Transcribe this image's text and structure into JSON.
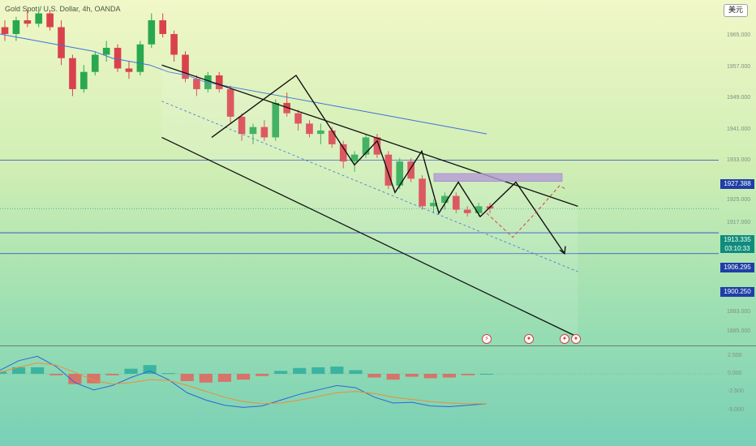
{
  "header": {
    "title": "Gold Spot / U.S. Dollar, 4h, OANDA",
    "currency_button": "美元"
  },
  "price_axis": {
    "ticks": [
      "1965.000",
      "1957.000",
      "1949.000",
      "1941.000",
      "1933.000",
      "1925.000",
      "1917.000",
      "1900.250",
      "1893.000",
      "1885.000"
    ],
    "tick_values": [
      1965,
      1957,
      1949,
      1941,
      1933,
      1925,
      1917,
      1900.25,
      1893,
      1885
    ]
  },
  "levels": [
    {
      "label": "1927.388",
      "value": 1927.388,
      "color": "#2747c4"
    },
    {
      "label": "1906.295",
      "value": 1906.295,
      "color": "#2747c4"
    },
    {
      "label": "1900.250",
      "value": 1900.25,
      "color": "#2747c4"
    }
  ],
  "current_price": {
    "price": "1913.335",
    "countdown": "03:10:33",
    "value": 1913.335,
    "color": "#0f8c7c"
  },
  "events": [
    {
      "icon": "lightning-icon",
      "glyph": "⚡"
    },
    {
      "icon": "us-flag-icon",
      "glyph": "✦"
    },
    {
      "icon": "us-flag-icon",
      "glyph": "✦"
    },
    {
      "icon": "us-flag-icon",
      "glyph": "✦"
    }
  ],
  "macd_axis": {
    "ticks": [
      "2.500",
      "0.000",
      "-2.500",
      "-5.000"
    ],
    "tick_values": [
      2.5,
      0,
      -2.5,
      -5
    ]
  },
  "colors": {
    "up": "#2aa84f",
    "down": "#d9424c",
    "ma": "#3f73d9",
    "channel": "#111111",
    "zone": "#b59ad8",
    "macd": "#2f64d9",
    "signal": "#f08d34",
    "hist_up": "#1fa89a",
    "hist_down": "#ef5350"
  },
  "chart_data": {
    "type": "candlestick",
    "symbol": "Gold Spot / U.S. Dollar",
    "timeframe": "4h",
    "ylim": [
      1875,
      1972
    ],
    "candles": [
      [
        1966,
        1968,
        1962,
        1964
      ],
      [
        1964,
        1969,
        1962,
        1968
      ],
      [
        1968,
        1971,
        1966,
        1967
      ],
      [
        1967,
        1972,
        1966,
        1970
      ],
      [
        1970,
        1971,
        1965,
        1966
      ],
      [
        1966,
        1968,
        1955,
        1957
      ],
      [
        1957,
        1958,
        1946,
        1948
      ],
      [
        1948,
        1955,
        1947,
        1953
      ],
      [
        1953,
        1959,
        1952,
        1958
      ],
      [
        1958,
        1962,
        1956,
        1960
      ],
      [
        1960,
        1961,
        1953,
        1954
      ],
      [
        1954,
        1956,
        1951,
        1953
      ],
      [
        1953,
        1962,
        1952,
        1961
      ],
      [
        1961,
        1970,
        1960,
        1968
      ],
      [
        1968,
        1970,
        1963,
        1964
      ],
      [
        1964,
        1965,
        1956,
        1958
      ],
      [
        1958,
        1959,
        1950,
        1951
      ],
      [
        1951,
        1952,
        1946,
        1948
      ],
      [
        1948,
        1953,
        1947,
        1952
      ],
      [
        1952,
        1953,
        1947,
        1948
      ],
      [
        1948,
        1949,
        1938,
        1940
      ],
      [
        1940,
        1941,
        1933,
        1935
      ],
      [
        1935,
        1938,
        1932,
        1937
      ],
      [
        1937,
        1939,
        1933,
        1934
      ],
      [
        1934,
        1945,
        1933,
        1944
      ],
      [
        1944,
        1947,
        1940,
        1941
      ],
      [
        1941,
        1942,
        1936,
        1938
      ],
      [
        1938,
        1939,
        1934,
        1935
      ],
      [
        1935,
        1938,
        1932,
        1936
      ],
      [
        1936,
        1937,
        1931,
        1932
      ],
      [
        1932,
        1933,
        1925,
        1927
      ],
      [
        1927,
        1930,
        1924,
        1929
      ],
      [
        1929,
        1935,
        1928,
        1934
      ],
      [
        1934,
        1935,
        1928,
        1929
      ],
      [
        1929,
        1930,
        1919,
        1920
      ],
      [
        1920,
        1928,
        1919,
        1927
      ],
      [
        1927,
        1928,
        1921,
        1922
      ],
      [
        1922,
        1923,
        1913,
        1914
      ],
      [
        1914,
        1916,
        1912,
        1915
      ],
      [
        1915,
        1918,
        1913,
        1917
      ],
      [
        1917,
        1918,
        1912,
        1913
      ],
      [
        1913,
        1914,
        1911,
        1912
      ],
      [
        1912,
        1915,
        1911,
        1914
      ],
      [
        1914,
        1915,
        1912,
        1913.335
      ]
    ],
    "moving_average": [
      1964,
      1963,
      1962,
      1961,
      1960,
      1959,
      1957,
      1956,
      1955,
      1953,
      1952,
      1950,
      1949,
      1948,
      1947,
      1946,
      1945,
      1944,
      1943,
      1942,
      1941,
      1940,
      1939,
      1938,
      1937,
      1936,
      1935
    ],
    "channel": {
      "upper": [
        [
          0.28,
          1955
        ],
        [
          1.0,
          1914
        ]
      ],
      "lower": [
        [
          0.28,
          1934
        ],
        [
          1.0,
          1876
        ]
      ]
    },
    "projection": [
      [
        0,
        1910
      ],
      [
        0.3,
        1919
      ],
      [
        0.6,
        1899
      ]
    ],
    "macd": {
      "macd_line": [
        0.5,
        1.8,
        2.4,
        1.0,
        -1.2,
        -2.2,
        -1.6,
        -0.5,
        0.4,
        -0.8,
        -2.6,
        -3.6,
        -4.3,
        -4.6,
        -4.4,
        -3.6,
        -2.8,
        -2.2,
        -1.6,
        -1.9,
        -3.2,
        -4.0,
        -3.9,
        -4.4,
        -4.5,
        -4.3,
        -4.1
      ],
      "signal_line": [
        0.2,
        0.9,
        1.5,
        1.2,
        0.2,
        -0.9,
        -1.4,
        -1.2,
        -0.8,
        -0.9,
        -1.6,
        -2.4,
        -3.2,
        -3.8,
        -4.1,
        -4.0,
        -3.6,
        -3.1,
        -2.6,
        -2.4,
        -2.7,
        -3.2,
        -3.5,
        -3.8,
        -4.0,
        -4.1,
        -4.1
      ],
      "histogram": [
        0.3,
        0.9,
        0.9,
        -0.2,
        -1.4,
        -1.3,
        -0.2,
        0.7,
        1.2,
        0.1,
        -1.0,
        -1.2,
        -1.1,
        -0.8,
        -0.3,
        0.4,
        0.8,
        0.9,
        1.0,
        0.5,
        -0.5,
        -0.8,
        -0.4,
        -0.6,
        -0.5,
        -0.2,
        0.0
      ]
    }
  }
}
